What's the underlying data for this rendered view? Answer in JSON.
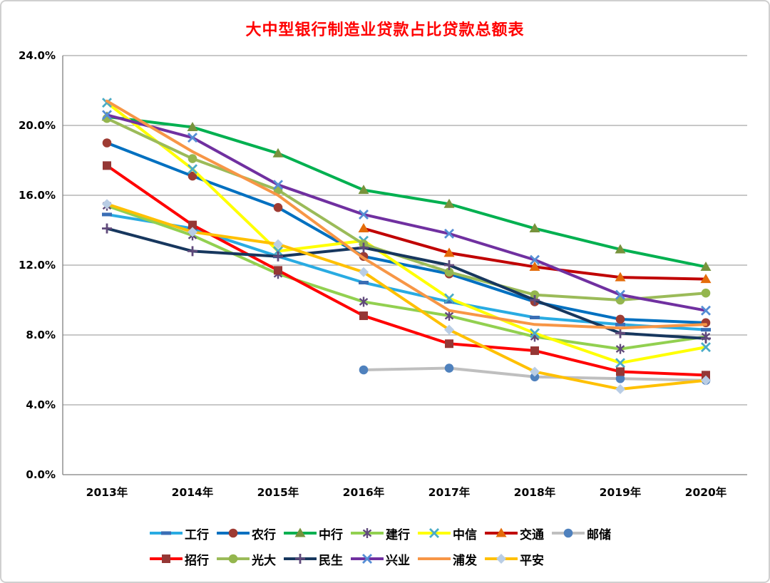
{
  "title": "大中型银行制造业贷款占比贷款总额表",
  "title_color": "#FF0000",
  "chart_data": {
    "type": "line",
    "title": "大中型银行制造业贷款占比贷款总额表",
    "x_categories": [
      "2013年",
      "2014年",
      "2015年",
      "2016年",
      "2017年",
      "2018年",
      "2019年",
      "2020年"
    ],
    "y_ticks": [
      "0.0%",
      "4.0%",
      "8.0%",
      "12.0%",
      "16.0%",
      "20.0%",
      "24.0%"
    ],
    "ylim": [
      0,
      24
    ],
    "y_unit": "percent",
    "grid": "horizontal",
    "legend_position": "bottom",
    "series": [
      {
        "name": "工行",
        "color": "#29ABE2",
        "marker": "dash",
        "marker_color": "#3A6EB5",
        "values": [
          14.9,
          14.1,
          12.5,
          11.0,
          9.9,
          9.0,
          8.6,
          8.3
        ]
      },
      {
        "name": "农行",
        "color": "#0070C0",
        "marker": "circle",
        "marker_color": "#9E3B33",
        "values": [
          19.0,
          17.1,
          15.3,
          12.5,
          11.5,
          9.9,
          8.9,
          8.7
        ]
      },
      {
        "name": "中行",
        "color": "#00B050",
        "marker": "triangle",
        "marker_color": "#77933C",
        "values": [
          20.5,
          19.9,
          18.4,
          16.3,
          15.5,
          14.1,
          12.9,
          11.9
        ]
      },
      {
        "name": "建行",
        "color": "#92D050",
        "marker": "asterisk",
        "marker_color": "#604A7B",
        "values": [
          15.4,
          13.7,
          11.5,
          9.9,
          9.1,
          7.9,
          7.2,
          7.9
        ]
      },
      {
        "name": "中信",
        "color": "#FFFF00",
        "marker": "x",
        "marker_color": "#4BACC6",
        "values": [
          21.3,
          17.5,
          12.8,
          13.4,
          10.1,
          8.1,
          6.4,
          7.3
        ]
      },
      {
        "name": "交通",
        "color": "#C00000",
        "marker": "triangle",
        "marker_color": "#E46C0A",
        "values": [
          null,
          null,
          null,
          14.1,
          12.7,
          11.9,
          11.3,
          11.2
        ]
      },
      {
        "name": "邮储",
        "color": "#BFBFBF",
        "marker": "circle",
        "marker_color": "#4F81BD",
        "values": [
          null,
          null,
          null,
          6.0,
          6.1,
          5.6,
          5.5,
          5.4
        ]
      },
      {
        "name": "招行",
        "color": "#FF0000",
        "marker": "square",
        "marker_color": "#953735",
        "values": [
          17.7,
          14.3,
          11.7,
          9.1,
          7.5,
          7.1,
          5.9,
          5.7
        ]
      },
      {
        "name": "光大",
        "color": "#9BBB59",
        "marker": "circle",
        "marker_color": "#94B64E",
        "values": [
          20.4,
          18.1,
          16.3,
          13.2,
          11.6,
          10.3,
          10.0,
          10.4
        ]
      },
      {
        "name": "民生",
        "color": "#17375E",
        "marker": "plus",
        "marker_color": "#604A7B",
        "values": [
          14.1,
          12.8,
          12.5,
          13.0,
          12.0,
          10.0,
          8.1,
          7.8
        ]
      },
      {
        "name": "兴业",
        "color": "#7030A0",
        "marker": "x",
        "marker_color": "#558ED5",
        "values": [
          20.6,
          19.3,
          16.6,
          14.9,
          13.8,
          12.3,
          10.3,
          9.4
        ]
      },
      {
        "name": "浦发",
        "color": "#F79646",
        "marker": "none",
        "marker_color": "#F79646",
        "values": [
          21.4,
          18.5,
          16.0,
          12.4,
          9.4,
          8.6,
          8.4,
          8.6
        ]
      },
      {
        "name": "平安",
        "color": "#FFC000",
        "marker": "diamond",
        "marker_color": "#B9CDE5",
        "values": [
          15.5,
          13.9,
          13.2,
          11.6,
          8.3,
          5.9,
          4.9,
          5.4
        ]
      }
    ]
  }
}
